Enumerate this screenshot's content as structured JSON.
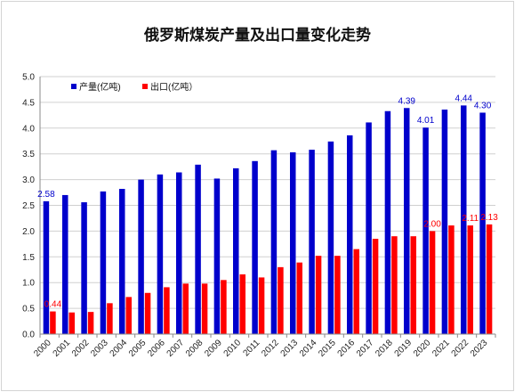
{
  "chart_data": {
    "type": "bar",
    "title": "俄罗斯煤炭产量及出口量变化走势",
    "categories": [
      "2000",
      "2001",
      "2002",
      "2003",
      "2004",
      "2005",
      "2006",
      "2007",
      "2008",
      "2009",
      "2010",
      "2011",
      "2012",
      "2013",
      "2014",
      "2015",
      "2016",
      "2017",
      "2018",
      "2019",
      "2020",
      "2021",
      "2022",
      "2023"
    ],
    "series": [
      {
        "name": "产量(亿吨)",
        "color": "#0000cc",
        "values": [
          2.58,
          2.7,
          2.56,
          2.77,
          2.82,
          3.0,
          3.1,
          3.14,
          3.29,
          3.02,
          3.22,
          3.36,
          3.57,
          3.53,
          3.58,
          3.74,
          3.86,
          4.11,
          4.33,
          4.39,
          4.01,
          4.36,
          4.44,
          4.3
        ],
        "labels": {
          "2000": "2.58",
          "2019": "4.39",
          "2020": "4.01",
          "2022": "4.44",
          "2023": "4.30"
        }
      },
      {
        "name": "出口(亿吨）",
        "color": "#ff0000",
        "values": [
          0.44,
          0.42,
          0.43,
          0.6,
          0.72,
          0.8,
          0.91,
          0.98,
          0.98,
          1.05,
          1.16,
          1.1,
          1.3,
          1.39,
          1.52,
          1.52,
          1.65,
          1.85,
          1.9,
          1.9,
          2.0,
          2.11,
          2.11,
          2.13
        ],
        "labels": {
          "2000": "0.44",
          "2020": "2.00",
          "2022": "2.11",
          "2023": "2.13"
        }
      }
    ],
    "ylim": [
      0,
      5
    ],
    "yticks": [
      "0.0",
      "0.5",
      "1.0",
      "1.5",
      "2.0",
      "2.5",
      "3.0",
      "3.5",
      "4.0",
      "4.5",
      "5.0"
    ],
    "grid": true,
    "legend_position": "top-left"
  }
}
